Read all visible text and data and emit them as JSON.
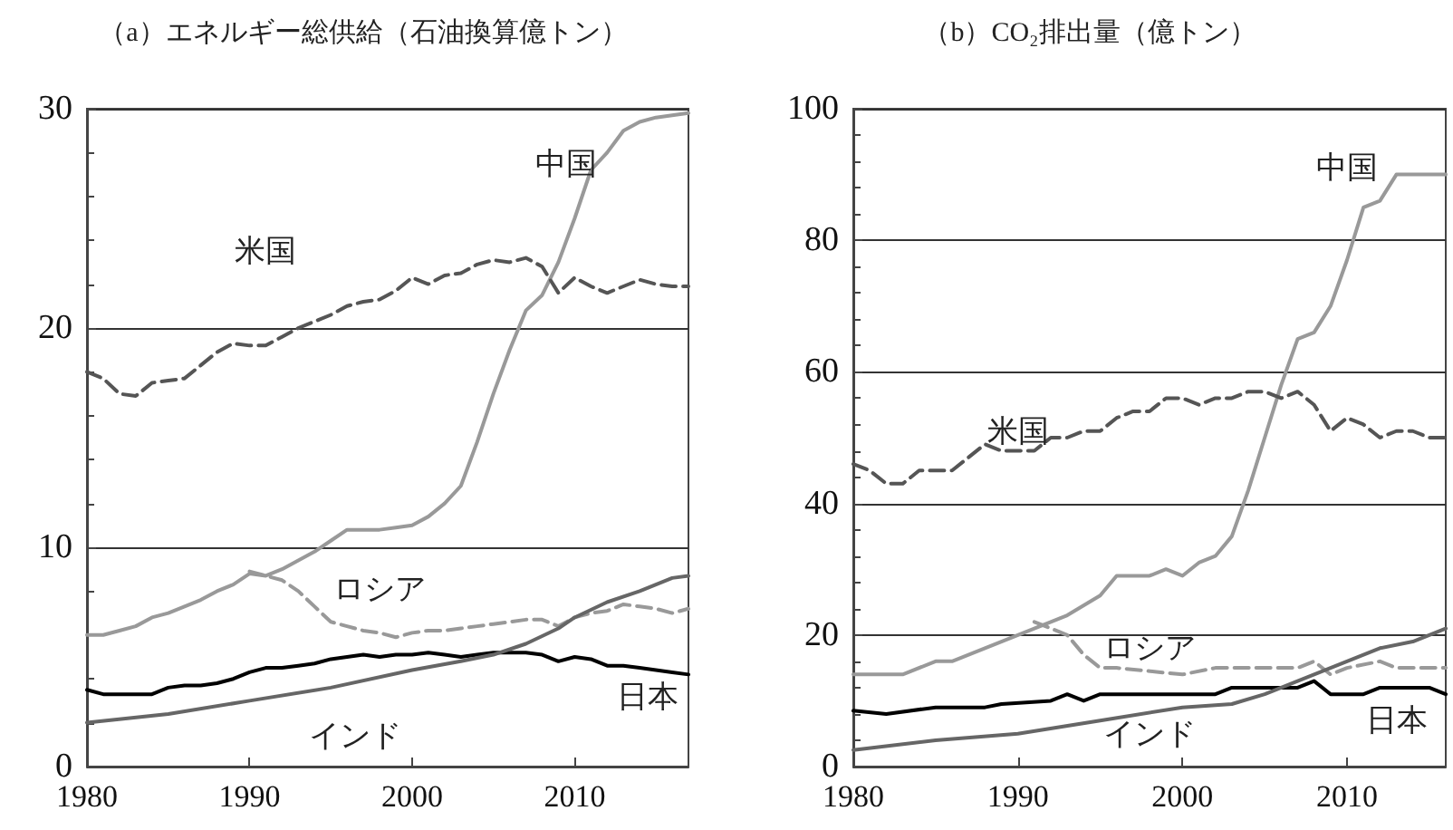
{
  "chart_data": [
    {
      "type": "line",
      "title": "（a）エネルギー総供給（石油換算億トン）",
      "xlim": [
        1980,
        2017
      ],
      "ylim": [
        0,
        30
      ],
      "xticks": [
        1980,
        1990,
        2000,
        2010
      ],
      "yticks": [
        0,
        10,
        20,
        30
      ],
      "grid": "y",
      "marker": "none",
      "legend": false,
      "series": [
        {
          "name": "中国",
          "color": "#999999",
          "line_style": "solid",
          "x": [
            1980,
            1981,
            1982,
            1983,
            1984,
            1985,
            1986,
            1987,
            1988,
            1989,
            1990,
            1991,
            1992,
            1993,
            1994,
            1995,
            1996,
            1997,
            1998,
            1999,
            2000,
            2001,
            2002,
            2003,
            2004,
            2005,
            2006,
            2007,
            2008,
            2009,
            2010,
            2011,
            2012,
            2013,
            2014,
            2015,
            2016,
            2017
          ],
          "values": [
            6.0,
            6.0,
            6.2,
            6.4,
            6.8,
            7.0,
            7.3,
            7.6,
            8.0,
            8.3,
            8.8,
            8.7,
            9.0,
            9.4,
            9.8,
            10.3,
            10.8,
            10.8,
            10.8,
            10.9,
            11.0,
            11.4,
            12.0,
            12.8,
            14.8,
            17.0,
            19.0,
            20.8,
            21.5,
            23.0,
            25.0,
            27.2,
            28.0,
            29.0,
            29.4,
            29.6,
            29.7,
            29.8
          ]
        },
        {
          "name": "米国",
          "color": "#555555",
          "line_style": "dashed",
          "x": [
            1980,
            1981,
            1982,
            1983,
            1984,
            1985,
            1986,
            1987,
            1988,
            1989,
            1990,
            1991,
            1992,
            1993,
            1994,
            1995,
            1996,
            1997,
            1998,
            1999,
            2000,
            2001,
            2002,
            2003,
            2004,
            2005,
            2006,
            2007,
            2008,
            2009,
            2010,
            2011,
            2012,
            2013,
            2014,
            2015,
            2016,
            2017
          ],
          "values": [
            18.0,
            17.7,
            17.0,
            16.9,
            17.5,
            17.6,
            17.7,
            18.3,
            18.9,
            19.3,
            19.2,
            19.2,
            19.6,
            20.0,
            20.3,
            20.6,
            21.0,
            21.2,
            21.3,
            21.7,
            22.3,
            22.0,
            22.4,
            22.5,
            22.9,
            23.1,
            23.0,
            23.2,
            22.8,
            21.6,
            22.3,
            21.9,
            21.6,
            21.9,
            22.2,
            22.0,
            21.9,
            21.9
          ]
        },
        {
          "name": "ロシア",
          "color": "#999999",
          "line_style": "dashed",
          "x": [
            1990,
            1991,
            1992,
            1993,
            1994,
            1995,
            1996,
            1997,
            1998,
            1999,
            2000,
            2001,
            2002,
            2003,
            2004,
            2005,
            2006,
            2007,
            2008,
            2009,
            2010,
            2011,
            2012,
            2013,
            2014,
            2015,
            2016,
            2017
          ],
          "values": [
            8.9,
            8.7,
            8.5,
            8.0,
            7.3,
            6.6,
            6.4,
            6.2,
            6.1,
            5.9,
            6.1,
            6.2,
            6.2,
            6.3,
            6.4,
            6.5,
            6.6,
            6.7,
            6.7,
            6.4,
            6.8,
            7.0,
            7.1,
            7.4,
            7.3,
            7.2,
            7.0,
            7.2
          ]
        },
        {
          "name": "日本",
          "color": "#000000",
          "line_style": "solid",
          "x": [
            1980,
            1981,
            1982,
            1983,
            1984,
            1985,
            1986,
            1987,
            1988,
            1989,
            1990,
            1991,
            1992,
            1993,
            1994,
            1995,
            1996,
            1997,
            1998,
            1999,
            2000,
            2001,
            2002,
            2003,
            2004,
            2005,
            2006,
            2007,
            2008,
            2009,
            2010,
            2011,
            2012,
            2013,
            2014,
            2015,
            2016,
            2017
          ],
          "values": [
            3.5,
            3.3,
            3.3,
            3.3,
            3.3,
            3.6,
            3.7,
            3.7,
            3.8,
            4.0,
            4.3,
            4.5,
            4.5,
            4.6,
            4.7,
            4.9,
            5.0,
            5.1,
            5.0,
            5.1,
            5.1,
            5.2,
            5.1,
            5.0,
            5.1,
            5.2,
            5.2,
            5.2,
            5.1,
            4.8,
            5.0,
            4.9,
            4.6,
            4.6,
            4.5,
            4.4,
            4.3,
            4.2
          ]
        },
        {
          "name": "インド",
          "color": "#666666",
          "line_style": "solid",
          "x": [
            1980,
            1985,
            1990,
            1995,
            2000,
            2003,
            2005,
            2007,
            2009,
            2010,
            2012,
            2014,
            2016,
            2017
          ],
          "values": [
            2.0,
            2.4,
            3.0,
            3.6,
            4.4,
            4.8,
            5.1,
            5.6,
            6.3,
            6.8,
            7.5,
            8.0,
            8.6,
            8.7
          ]
        }
      ]
    },
    {
      "type": "line",
      "title": "（b）CO₂排出量（億トン）",
      "xlim": [
        1980,
        2016
      ],
      "ylim": [
        0,
        100
      ],
      "xticks": [
        1980,
        1990,
        2000,
        2010
      ],
      "yticks": [
        0,
        20,
        40,
        60,
        80,
        100
      ],
      "grid": "y",
      "marker": "none",
      "legend": false,
      "series": [
        {
          "name": "中国",
          "color": "#999999",
          "line_style": "solid",
          "x": [
            1980,
            1983,
            1985,
            1986,
            1988,
            1990,
            1993,
            1995,
            1996,
            1998,
            1999,
            2000,
            2001,
            2002,
            2003,
            2004,
            2005,
            2006,
            2007,
            2008,
            2009,
            2010,
            2011,
            2012,
            2013,
            2016
          ],
          "values": [
            14,
            14,
            16,
            16,
            18,
            20,
            23,
            26,
            29,
            29,
            30,
            29,
            31,
            32,
            35,
            42,
            50,
            58,
            65,
            66,
            70,
            77,
            85,
            86,
            90,
            90
          ]
        },
        {
          "name": "米国",
          "color": "#555555",
          "line_style": "dashed",
          "x": [
            1980,
            1981,
            1982,
            1983,
            1984,
            1985,
            1986,
            1987,
            1988,
            1989,
            1990,
            1991,
            1992,
            1993,
            1994,
            1995,
            1996,
            1997,
            1998,
            1999,
            2000,
            2001,
            2002,
            2003,
            2004,
            2005,
            2006,
            2007,
            2008,
            2009,
            2010,
            2011,
            2012,
            2013,
            2014,
            2015,
            2016
          ],
          "values": [
            46,
            45,
            43,
            43,
            45,
            45,
            45,
            47,
            49,
            48,
            48,
            48,
            50,
            50,
            51,
            51,
            53,
            54,
            54,
            56,
            56,
            55,
            56,
            56,
            57,
            57,
            56,
            57,
            55,
            51,
            53,
            52,
            50,
            51,
            51,
            50,
            50
          ]
        },
        {
          "name": "ロシア",
          "color": "#999999",
          "line_style": "dashed",
          "x": [
            1991,
            1992,
            1993,
            1994,
            1995,
            1996,
            2000,
            2002,
            2007,
            2008,
            2009,
            2010,
            2012,
            2013,
            2016
          ],
          "values": [
            22,
            21,
            20,
            17,
            15,
            15,
            14,
            15,
            15,
            16,
            14,
            15,
            16,
            15,
            15
          ]
        },
        {
          "name": "日本",
          "color": "#000000",
          "line_style": "solid",
          "x": [
            1980,
            1982,
            1985,
            1988,
            1989,
            1992,
            1993,
            1994,
            1995,
            2002,
            2003,
            2007,
            2008,
            2009,
            2011,
            2012,
            2015,
            2016
          ],
          "values": [
            8.5,
            8,
            9,
            9,
            9.5,
            10,
            11,
            10,
            11,
            11,
            12,
            12,
            13,
            11,
            11,
            12,
            12,
            11
          ]
        },
        {
          "name": "インド",
          "color": "#666666",
          "line_style": "solid",
          "x": [
            1980,
            1985,
            1990,
            1995,
            2000,
            2003,
            2005,
            2007,
            2009,
            2010,
            2012,
            2014,
            2016
          ],
          "values": [
            2.5,
            4,
            5,
            7,
            9,
            9.5,
            11,
            13,
            15,
            16,
            18,
            19,
            21
          ]
        }
      ]
    }
  ]
}
